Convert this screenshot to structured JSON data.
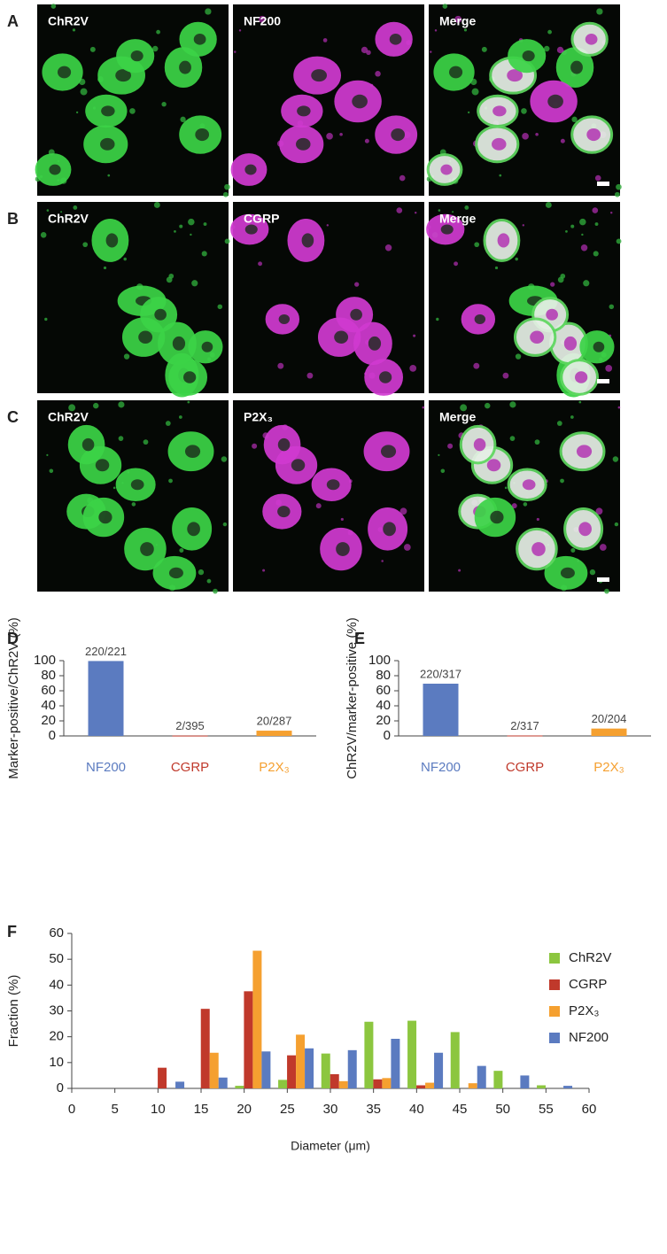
{
  "figure_panels": [
    {
      "label": "A",
      "images": [
        "ChR2V",
        "NF200",
        "Merge"
      ]
    },
    {
      "label": "B",
      "images": [
        "ChR2V",
        "CGRP",
        "Merge"
      ]
    },
    {
      "label": "C",
      "images": [
        "ChR2V",
        "P2X₃",
        "Merge"
      ]
    }
  ],
  "chart_data": [
    {
      "type": "bar",
      "panel": "D",
      "ylabel": "Marker-positive/ChR2V (%)",
      "categories": [
        "NF200",
        "CGRP",
        "P2X₃"
      ],
      "values": [
        99.5,
        0.5,
        7.0
      ],
      "value_labels": [
        "220/221",
        "2/395",
        "20/287"
      ],
      "colors": [
        "#5b7bc0",
        "#c0392b",
        "#f5a030"
      ],
      "ylim": [
        0,
        100
      ],
      "yticks": [
        0,
        20,
        40,
        60,
        80,
        100
      ]
    },
    {
      "type": "bar",
      "panel": "E",
      "ylabel": "ChR2V/marker-positive (%)",
      "categories": [
        "NF200",
        "CGRP",
        "P2X₃"
      ],
      "values": [
        69.4,
        0.6,
        9.8
      ],
      "value_labels": [
        "220/317",
        "2/317",
        "20/204"
      ],
      "colors": [
        "#5b7bc0",
        "#c0392b",
        "#f5a030"
      ],
      "ylim": [
        0,
        100
      ],
      "yticks": [
        0,
        20,
        40,
        60,
        80,
        100
      ]
    },
    {
      "type": "histogram",
      "panel": "F",
      "xlabel": "Diameter (μm)",
      "ylabel": "Fraction (%)",
      "bins": [
        10,
        15,
        20,
        25,
        30,
        35,
        40,
        45,
        50,
        55,
        60
      ],
      "series": [
        {
          "name": "ChR2V",
          "color": "#8cc63f",
          "values": [
            0,
            0,
            1,
            3.3,
            13.5,
            25.8,
            26.2,
            21.8,
            6.8,
            1.2
          ]
        },
        {
          "name": "CGRP",
          "color": "#c0392b",
          "values": [
            8,
            30.8,
            37.6,
            12.8,
            5.5,
            3.5,
            1.2,
            0,
            0,
            0
          ]
        },
        {
          "name": "P2X₃",
          "color": "#f5a030",
          "values": [
            0,
            13.8,
            53.3,
            20.8,
            2.8,
            4,
            2.2,
            2,
            0,
            0
          ]
        },
        {
          "name": "NF200",
          "color": "#5b7bc0",
          "values": [
            2.6,
            4.2,
            14.3,
            15.5,
            14.8,
            19.2,
            13.8,
            8.7,
            5,
            1
          ]
        }
      ],
      "xlim": [
        0,
        60
      ],
      "xticks": [
        0,
        5,
        10,
        15,
        20,
        25,
        30,
        35,
        40,
        45,
        50,
        55,
        60
      ],
      "ylim": [
        0,
        60
      ],
      "yticks": [
        0,
        10,
        20,
        30,
        40,
        50,
        60
      ],
      "legend": "right"
    }
  ]
}
